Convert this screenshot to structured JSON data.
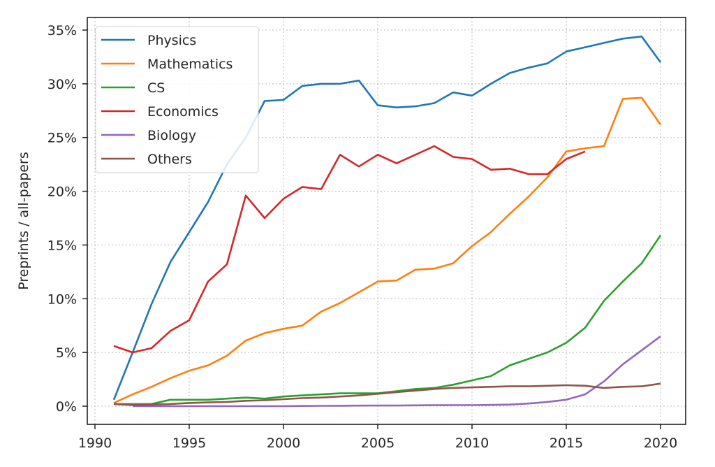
{
  "chart_data": {
    "type": "line",
    "title": "",
    "xlabel": "",
    "ylabel": "Preprints / all-papers",
    "xlim": [
      1989.6,
      2021.4
    ],
    "ylim": [
      -1.6,
      37
    ],
    "x_ticks": [
      1990,
      1995,
      2000,
      2005,
      2010,
      2015,
      2020
    ],
    "x_tick_labels": [
      "1990",
      "1995",
      "2000",
      "2005",
      "2010",
      "2015",
      "2020"
    ],
    "y_ticks": [
      0,
      5,
      10,
      15,
      20,
      25,
      30,
      35
    ],
    "y_tick_labels": [
      "0%",
      "5%",
      "10%",
      "15%",
      "20%",
      "25%",
      "30%",
      "35%"
    ],
    "grid": true,
    "legend_position": "top-left",
    "x": [
      1991,
      1992,
      1993,
      1994,
      1995,
      1996,
      1997,
      1998,
      1999,
      2000,
      2001,
      2002,
      2003,
      2004,
      2005,
      2006,
      2007,
      2008,
      2009,
      2010,
      2011,
      2012,
      2013,
      2014,
      2015,
      2016,
      2017,
      2018,
      2019,
      2020
    ],
    "series": [
      {
        "name": "Physics",
        "color": "#1f77b4",
        "values": [
          0.6,
          5,
          9.5,
          13.4,
          16.2,
          19,
          22.5,
          25,
          28.4,
          28.5,
          29.8,
          30,
          30,
          30.3,
          28,
          27.8,
          27.9,
          28.2,
          29.2,
          28.9,
          30,
          31,
          31.5,
          31.9,
          33,
          33.4,
          33.8,
          34.2,
          34.4,
          32
        ]
      },
      {
        "name": "Mathematics",
        "color": "#ff7f0e",
        "values": [
          0.3,
          1.1,
          1.8,
          2.6,
          3.3,
          3.8,
          4.7,
          6.1,
          6.8,
          7.2,
          7.5,
          8.8,
          9.6,
          10.6,
          11.6,
          11.7,
          12.7,
          12.8,
          13.3,
          14.9,
          16.2,
          17.9,
          19.5,
          21.3,
          23.7,
          24,
          24.2,
          28.6,
          28.7,
          26.2
        ]
      },
      {
        "name": "CS",
        "color": "#2ca02c",
        "values": [
          0.2,
          0.2,
          0.2,
          0.6,
          0.6,
          0.6,
          0.7,
          0.8,
          0.7,
          0.9,
          1.0,
          1.1,
          1.2,
          1.2,
          1.2,
          1.4,
          1.6,
          1.7,
          2.0,
          2.4,
          2.8,
          3.8,
          4.4,
          5.0,
          5.9,
          7.3,
          9.8,
          11.6,
          13.3,
          15.9
        ]
      },
      {
        "name": "Economics",
        "color": "#d62728",
        "values": [
          5.6,
          5.0,
          5.4,
          7.0,
          8.0,
          11.6,
          13.2,
          19.6,
          17.5,
          19.3,
          20.4,
          20.2,
          23.4,
          22.3,
          23.4,
          22.6,
          23.4,
          24.2,
          23.2,
          23.0,
          22.0,
          22.1,
          21.6,
          21.6,
          23.0,
          23.7,
          null,
          null,
          null,
          null
        ]
      },
      {
        "name": "Biology",
        "color": "#9467bd",
        "values": [
          null,
          0,
          0,
          0,
          0,
          0,
          0,
          0,
          0,
          0,
          0.02,
          0.03,
          0.04,
          0.05,
          0.06,
          0.06,
          0.08,
          0.09,
          0.1,
          0.1,
          0.12,
          0.15,
          0.25,
          0.4,
          0.6,
          1.1,
          2.3,
          3.9,
          5.2,
          6.5
        ]
      },
      {
        "name": "Others",
        "color": "#8c564b",
        "values": [
          0.2,
          0.1,
          0.15,
          0.2,
          0.3,
          0.35,
          0.4,
          0.5,
          0.55,
          0.65,
          0.75,
          0.8,
          0.9,
          1.0,
          1.15,
          1.3,
          1.45,
          1.6,
          1.7,
          1.75,
          1.8,
          1.85,
          1.85,
          1.9,
          1.95,
          1.9,
          1.7,
          1.8,
          1.85,
          2.1
        ]
      }
    ]
  }
}
